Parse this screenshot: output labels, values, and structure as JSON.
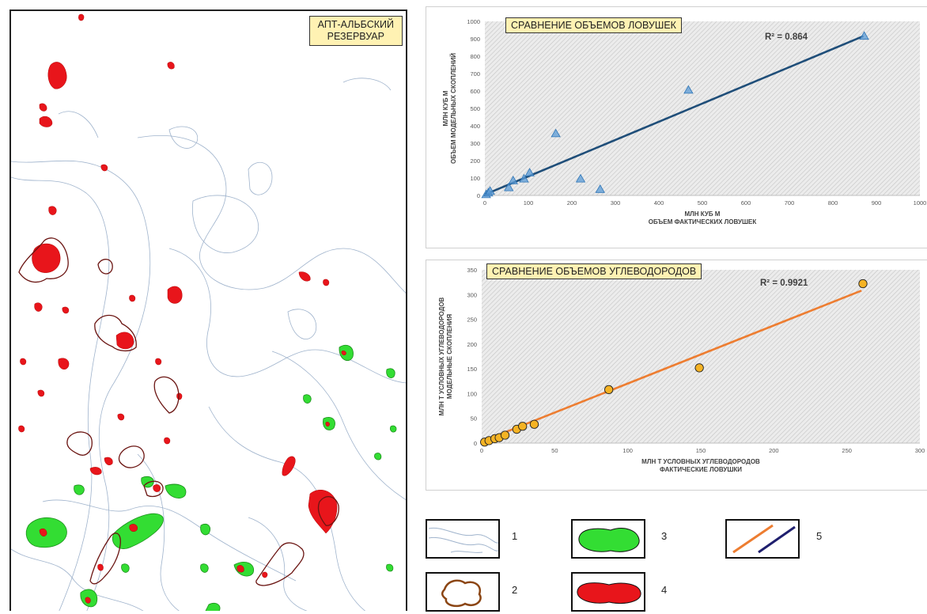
{
  "map": {
    "title": "АПТ-АЛЬБСКИЙ\nРЕЗЕРВУАР"
  },
  "colors": {
    "red_fill": "#e8151b",
    "green_fill": "#33dd33",
    "brown_outline": "#6b1512",
    "contour_line": "#9fb3cc",
    "trap_series": "#5b9bd5",
    "trap_line": "#1f4e79",
    "hc_series": "#f5b324",
    "hc_line": "#ed7d31",
    "plot_bg": "#d9d9d9",
    "title_bg": "#fff2b3"
  },
  "chart_data": [
    {
      "type": "scatter",
      "title": "СРАВНЕНИЕ ОБЪЕМОВ ЛОВУШЕК",
      "xlabel": "МЛН КУБ М\nОБЪЕМ ФАКТИЧЕСКИХ ЛОВУШЕК",
      "ylabel": "МЛН КУБ М\nОБЪЕМ МОДЕЛЬНЫХ СКОПЛЕНИЙ",
      "xlim": [
        0,
        1000
      ],
      "ylim": [
        0,
        1000
      ],
      "xticks": [
        0,
        100,
        200,
        300,
        400,
        500,
        600,
        700,
        800,
        900,
        1000
      ],
      "yticks": [
        0,
        100,
        200,
        300,
        400,
        500,
        600,
        700,
        800,
        900,
        1000
      ],
      "marker": "triangle",
      "annotation": "R² = 0.864",
      "trendline": [
        [
          0,
          5
        ],
        [
          870,
          915
        ]
      ],
      "series": [
        {
          "x": [
            3,
            8,
            12,
            55,
            65,
            90,
            103,
            163,
            220,
            265,
            468,
            872
          ],
          "y": [
            5,
            15,
            25,
            45,
            85,
            95,
            130,
            355,
            95,
            35,
            605,
            915
          ]
        }
      ]
    },
    {
      "type": "scatter",
      "title": "СРАВНЕНИЕ ОБЪЕМОВ УГЛЕВОДОРОДОВ",
      "xlabel": "МЛН Т УСЛОВНЫХ УГЛЕВОДОРОДОВ\nФАКТИЧЕСКИЕ ЛОВУШКИ",
      "ylabel": "МЛН Т УСЛОВНЫХ УГЛЕВОДОРОДОВ\nМОДЕЛЬНЫЕ СКОПЛЕНИЯ",
      "xlim": [
        0,
        300
      ],
      "ylim": [
        0,
        350
      ],
      "xticks": [
        0,
        50,
        100,
        150,
        200,
        250,
        300
      ],
      "yticks": [
        0,
        50,
        100,
        150,
        200,
        250,
        300,
        350
      ],
      "marker": "circle",
      "annotation": "R² = 0.9921",
      "trendline": [
        [
          0,
          3
        ],
        [
          260,
          308
        ]
      ],
      "series": [
        {
          "x": [
            2,
            5,
            9,
            12,
            16,
            24,
            28,
            36,
            87,
            149,
            261
          ],
          "y": [
            2,
            5,
            9,
            11,
            16,
            28,
            34,
            38,
            108,
            152,
            322
          ]
        }
      ]
    }
  ],
  "legend": [
    {
      "number": "1",
      "symbol": "contour-lines"
    },
    {
      "number": "2",
      "symbol": "brown-outline"
    },
    {
      "number": "3",
      "symbol": "green-area"
    },
    {
      "number": "4",
      "symbol": "red-area"
    },
    {
      "number": "5",
      "symbol": "trend-lines"
    }
  ]
}
